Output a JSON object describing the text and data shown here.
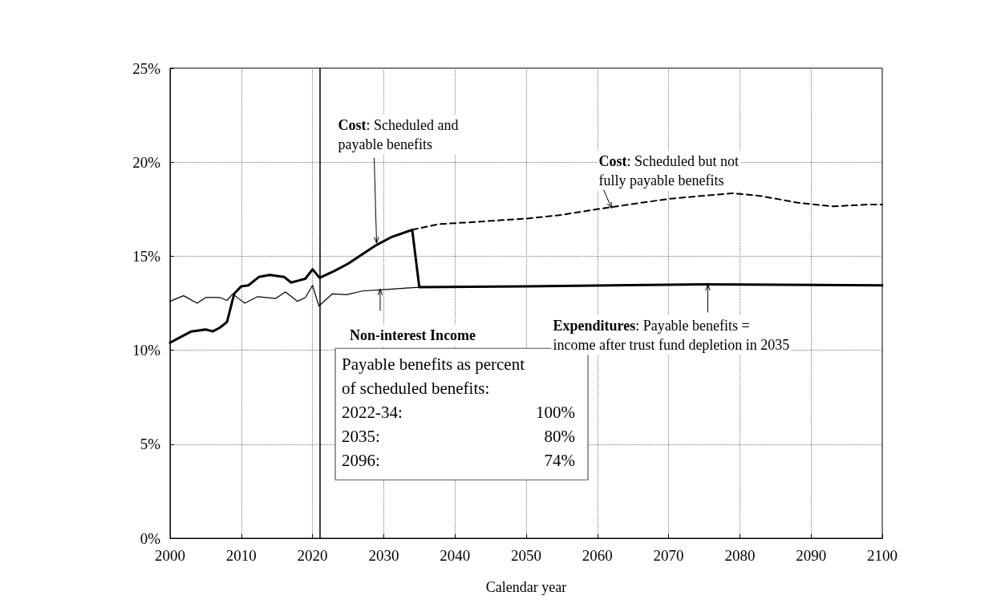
{
  "chart_data": {
    "type": "line",
    "xlabel": "Calendar year",
    "xlim": [
      2000,
      2100
    ],
    "xticks": [
      2000,
      2010,
      2020,
      2030,
      2040,
      2050,
      2060,
      2070,
      2080,
      2090,
      2100
    ],
    "ylim": [
      0,
      25
    ],
    "yticks": [
      {
        "value": 0,
        "label": "0%"
      },
      {
        "value": 5,
        "label": "5%"
      },
      {
        "value": 10,
        "label": "10%"
      },
      {
        "value": 15,
        "label": "15%"
      },
      {
        "value": 20,
        "label": "20%"
      },
      {
        "value": 25,
        "label": "25%"
      }
    ],
    "grid": true,
    "marker": "none",
    "series": [
      {
        "color": "#000000",
        "line_style": "solid",
        "x": [
          2000,
          2001.5,
          2003,
          2005,
          2006,
          2007,
          2008,
          2009,
          2010,
          2011,
          2012.5,
          2014,
          2016,
          2017,
          2018,
          2019,
          2020,
          2021,
          2023,
          2025,
          2027,
          2029,
          2031,
          2034,
          2035,
          2050,
          2075,
          2100
        ],
        "values": [
          10.4,
          10.7,
          11.0,
          11.1,
          11.0,
          11.2,
          11.5,
          13.0,
          13.4,
          13.45,
          13.9,
          14.0,
          13.9,
          13.6,
          13.7,
          13.8,
          14.3,
          13.85,
          14.2,
          14.6,
          15.1,
          15.6,
          16.0,
          16.4,
          13.35,
          13.4,
          13.5,
          13.45
        ]
      },
      {
        "color": "#000000",
        "line_style": "dashed",
        "x": [
          2034,
          2037.6,
          2044,
          2050,
          2055,
          2060,
          2070,
          2079,
          2083,
          2088,
          2093,
          2098,
          2100
        ],
        "values": [
          16.4,
          16.7,
          16.85,
          17.0,
          17.2,
          17.5,
          18.05,
          18.35,
          18.2,
          17.85,
          17.65,
          17.75,
          17.75
        ]
      },
      {
        "color": "#000000",
        "line_style": "solid",
        "x": [
          2000,
          2001.9,
          2003.8,
          2005,
          2007,
          2008,
          2008.8,
          2009.6,
          2010.5,
          2012.3,
          2014.8,
          2016.2,
          2017.9,
          2019,
          2020,
          2020.9,
          2022.8,
          2024.8,
          2027,
          2030,
          2035
        ],
        "values": [
          12.6,
          12.9,
          12.5,
          12.8,
          12.8,
          12.65,
          13.0,
          12.75,
          12.5,
          12.85,
          12.75,
          13.1,
          12.6,
          12.8,
          13.45,
          12.35,
          13.0,
          12.95,
          13.15,
          13.22,
          13.35
        ]
      }
    ],
    "ref_lines": [
      {
        "axis": "x",
        "value": 2021,
        "color": "#000000",
        "line_style": "solid"
      }
    ],
    "annotations": [
      {
        "text": "Cost: Scheduled and payable benefits",
        "x": 2029,
        "y": 15.7
      },
      {
        "text": "Cost: Scheduled but not fully payable benefits",
        "x": 2062,
        "y": 17.55
      },
      {
        "text": "Non-interest Income",
        "x": 2029.5,
        "y": 13.25
      },
      {
        "text": "Expenditures: Payable benefits = income after trust fund depletion in 2035",
        "x": 2075.5,
        "y": 13.5
      },
      "Payable benefits as percent\nof scheduled benefits:\n2022-34:\t100%\n2035:\t80%\n2096:\t74%"
    ]
  }
}
